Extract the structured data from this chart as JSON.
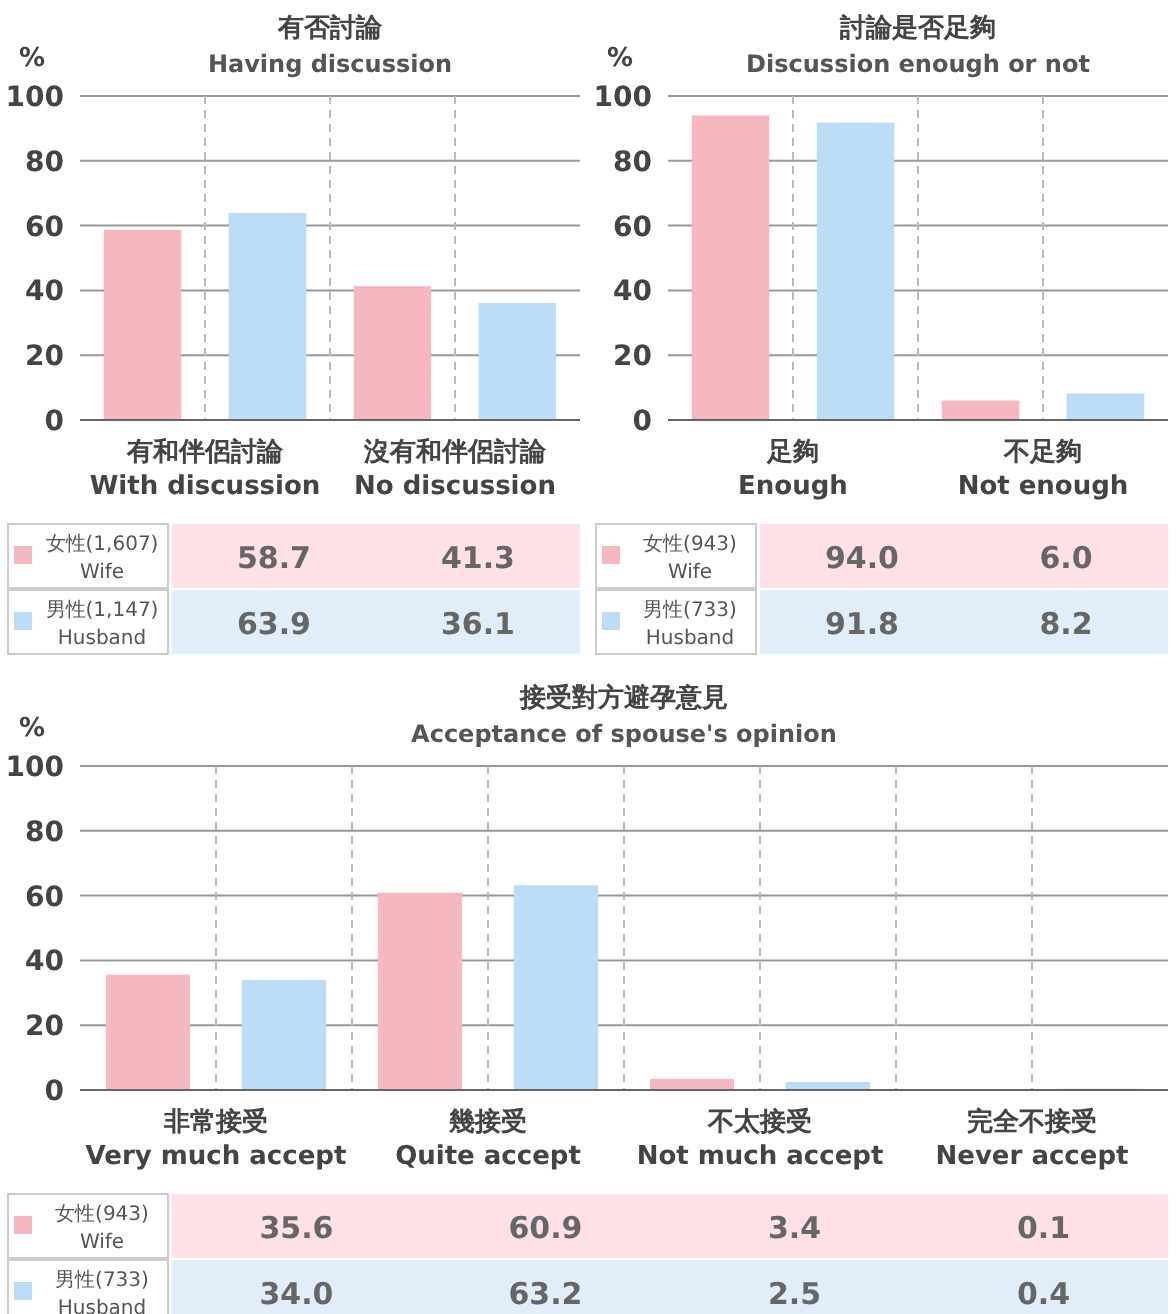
{
  "chart_data": [
    {
      "type": "bar",
      "title": "有否討論",
      "subtitle": "Having discussion",
      "ylabel": "%",
      "categories": [
        "有和伴侶討論\nWith discussion",
        "沒有和伴侶討論\nNo discussion"
      ],
      "series": [
        {
          "name": "女性(1,607)\nWife",
          "color": "#f5b8c0",
          "values": [
            58.7,
            41.3
          ],
          "value_labels": [
            "58.7",
            "41.3"
          ]
        },
        {
          "name": "男性(1,147)\nHusband",
          "color": "#bcdcf5",
          "values": [
            63.9,
            36.1
          ],
          "value_labels": [
            "63.9",
            "36.1"
          ]
        }
      ],
      "ylim": [
        0,
        100
      ],
      "yticks": [
        0,
        20,
        40,
        60,
        80,
        100
      ],
      "grid": true,
      "legend": "bottom"
    },
    {
      "type": "bar",
      "title": "討論是否足夠",
      "subtitle": "Discussion enough or not",
      "ylabel": "%",
      "categories": [
        "足夠\nEnough",
        "不足夠\nNot enough"
      ],
      "series": [
        {
          "name": "女性(943)\nWife",
          "color": "#f5b8c0",
          "values": [
            94.0,
            6.0
          ],
          "value_labels": [
            "94.0",
            "6.0"
          ]
        },
        {
          "name": "男性(733)\nHusband",
          "color": "#bcdcf5",
          "values": [
            91.8,
            8.2
          ],
          "value_labels": [
            "91.8",
            "8.2"
          ]
        }
      ],
      "ylim": [
        0,
        100
      ],
      "yticks": [
        0,
        20,
        40,
        60,
        80,
        100
      ],
      "grid": true,
      "legend": "bottom"
    },
    {
      "type": "bar",
      "title": "接受對方避孕意見",
      "subtitle": "Acceptance of spouse's opinion",
      "ylabel": "%",
      "categories": [
        "非常接受\nVery much accept",
        "幾接受\nQuite accept",
        "不太接受\nNot much accept",
        "完全不接受\nNever accept"
      ],
      "series": [
        {
          "name": "女性(943)\nWife",
          "color": "#f5b8c0",
          "values": [
            35.6,
            60.9,
            3.4,
            0.1
          ],
          "value_labels": [
            "35.6",
            "60.9",
            "3.4",
            "0.1"
          ]
        },
        {
          "name": "男性(733)\nHusband",
          "color": "#bcdcf5",
          "values": [
            34.0,
            63.2,
            2.5,
            0.4
          ],
          "value_labels": [
            "34.0",
            "63.2",
            "2.5",
            "0.4"
          ]
        }
      ],
      "ylim": [
        0,
        100
      ],
      "yticks": [
        0,
        20,
        40,
        60,
        80,
        100
      ],
      "grid": true,
      "legend": "bottom"
    }
  ]
}
